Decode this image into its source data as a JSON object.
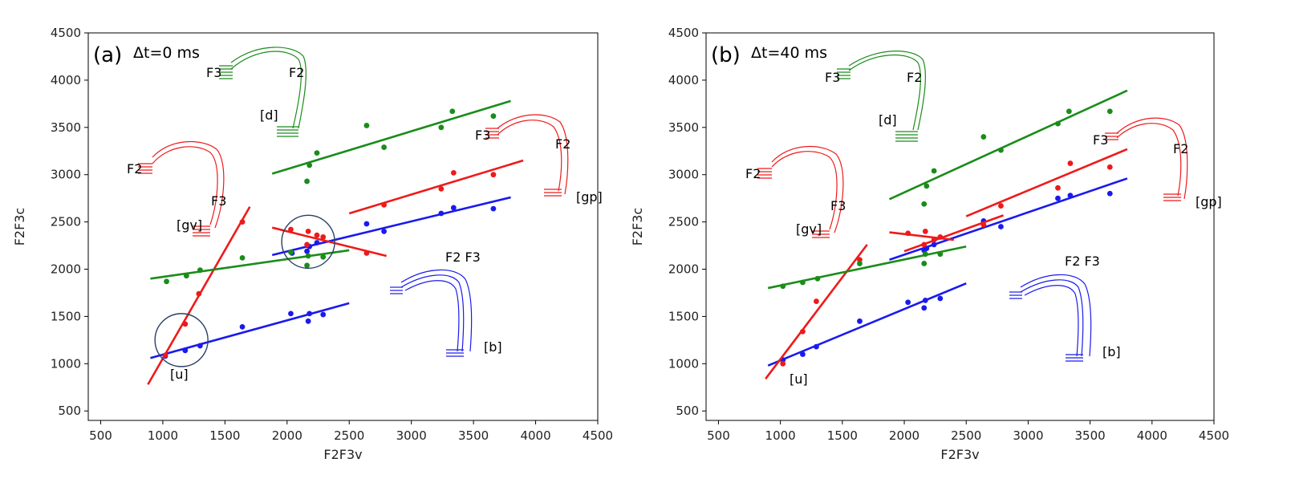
{
  "chart_data": [
    {
      "type": "scatter",
      "panel_label": "(a)",
      "title": "Δt=0 ms",
      "xlabel": "F2F3v",
      "ylabel": "F2F3c",
      "xlim": [
        400,
        4500
      ],
      "ylim": [
        400,
        4500
      ],
      "xticks": [
        500,
        1000,
        1500,
        2000,
        2500,
        3000,
        3500,
        4000,
        4500
      ],
      "yticks": [
        500,
        1000,
        1500,
        2000,
        2500,
        3000,
        3500,
        4000,
        4500
      ],
      "grid": false,
      "series": [
        {
          "color": "#1a1aee",
          "points": [
            [
              1020,
              1080
            ],
            [
              1180,
              1140
            ],
            [
              1300,
              1190
            ],
            [
              1640,
              1390
            ],
            [
              2030,
              1530
            ],
            [
              2170,
              1450
            ],
            [
              2180,
              1530
            ],
            [
              2290,
              1520
            ],
            [
              2040,
              2170
            ],
            [
              2160,
              2190
            ],
            [
              2180,
              2240
            ],
            [
              2240,
              2280
            ],
            [
              2640,
              2480
            ],
            [
              2780,
              2400
            ],
            [
              3240,
              2590
            ],
            [
              3340,
              2650
            ],
            [
              3660,
              2640
            ]
          ],
          "fits": [
            [
              [
                900,
                1060
              ],
              [
                2500,
                1640
              ]
            ],
            [
              [
                1880,
                2150
              ],
              [
                3800,
                2760
              ]
            ]
          ]
        },
        {
          "color": "#ee1a1a",
          "points": [
            [
              1020,
              1090
            ],
            [
              1180,
              1420
            ],
            [
              1290,
              1740
            ],
            [
              1640,
              2500
            ],
            [
              2030,
              2420
            ],
            [
              2160,
              2260
            ],
            [
              2170,
              2400
            ],
            [
              2240,
              2360
            ],
            [
              2290,
              2340
            ],
            [
              2640,
              2170
            ],
            [
              2780,
              2680
            ],
            [
              3240,
              2850
            ],
            [
              3340,
              3020
            ],
            [
              3660,
              3000
            ]
          ],
          "fits": [
            [
              [
                880,
                780
              ],
              [
                1700,
                2660
              ]
            ],
            [
              [
                1880,
                2440
              ],
              [
                2800,
                2140
              ]
            ],
            [
              [
                2500,
                2590
              ],
              [
                3900,
                3150
              ]
            ]
          ]
        },
        {
          "color": "#1a8c1a",
          "points": [
            [
              1030,
              1870
            ],
            [
              1190,
              1930
            ],
            [
              1300,
              1990
            ],
            [
              1640,
              2120
            ],
            [
              2030,
              2180
            ],
            [
              2160,
              2040
            ],
            [
              2170,
              2140
            ],
            [
              2290,
              2130
            ],
            [
              2160,
              2930
            ],
            [
              2180,
              3100
            ],
            [
              2240,
              3230
            ],
            [
              2640,
              3520
            ],
            [
              2780,
              3290
            ],
            [
              3240,
              3500
            ],
            [
              3330,
              3670
            ],
            [
              3660,
              3620
            ]
          ],
          "fits": [
            [
              [
                900,
                1900
              ],
              [
                2500,
                2200
              ]
            ],
            [
              [
                1880,
                3010
              ],
              [
                3800,
                3780
              ]
            ]
          ]
        }
      ],
      "circles": [
        [
          1150,
          1250
        ],
        [
          2170,
          2290
        ]
      ],
      "annotations": [
        "F3",
        "F2",
        "[d]",
        "F2",
        "F3",
        "[gv]",
        "F3",
        "F2",
        "[gp]",
        "F2 F3",
        "[b]",
        "[u]"
      ]
    },
    {
      "type": "scatter",
      "panel_label": "(b)",
      "title": "Δt=40 ms",
      "xlabel": "F2F3v",
      "ylabel": "F2F3c",
      "xlim": [
        400,
        4500
      ],
      "ylim": [
        400,
        4500
      ],
      "xticks": [
        500,
        1000,
        1500,
        2000,
        2500,
        3000,
        3500,
        4000,
        4500
      ],
      "yticks": [
        500,
        1000,
        1500,
        2000,
        2500,
        3000,
        3500,
        4000,
        4500
      ],
      "grid": false,
      "series": [
        {
          "color": "#1a1aee",
          "points": [
            [
              1020,
              1040
            ],
            [
              1180,
              1100
            ],
            [
              1290,
              1180
            ],
            [
              1640,
              1450
            ],
            [
              2030,
              1650
            ],
            [
              2160,
              1590
            ],
            [
              2170,
              1670
            ],
            [
              2290,
              1690
            ],
            [
              2160,
              2200
            ],
            [
              2180,
              2220
            ],
            [
              2240,
              2260
            ],
            [
              2640,
              2510
            ],
            [
              2780,
              2450
            ],
            [
              3240,
              2750
            ],
            [
              3340,
              2780
            ],
            [
              3660,
              2800
            ]
          ],
          "fits": [
            [
              [
                900,
                980
              ],
              [
                2500,
                1850
              ]
            ],
            [
              [
                1880,
                2100
              ],
              [
                3800,
                2960
              ]
            ]
          ]
        },
        {
          "color": "#ee1a1a",
          "points": [
            [
              1020,
              1000
            ],
            [
              1180,
              1340
            ],
            [
              1290,
              1660
            ],
            [
              1640,
              2100
            ],
            [
              2030,
              2380
            ],
            [
              2160,
              2260
            ],
            [
              2170,
              2400
            ],
            [
              2240,
              2310
            ],
            [
              2290,
              2340
            ],
            [
              2640,
              2470
            ],
            [
              2780,
              2670
            ],
            [
              3240,
              2860
            ],
            [
              3340,
              3120
            ],
            [
              3660,
              3080
            ]
          ],
          "fits": [
            [
              [
                880,
                840
              ],
              [
                1700,
                2260
              ]
            ],
            [
              [
                1880,
                2390
              ],
              [
                2400,
                2310
              ]
            ],
            [
              [
                2000,
                2190
              ],
              [
                2800,
                2570
              ]
            ],
            [
              [
                2500,
                2560
              ],
              [
                3800,
                3270
              ]
            ]
          ]
        },
        {
          "color": "#1a8c1a",
          "points": [
            [
              1020,
              1820
            ],
            [
              1180,
              1860
            ],
            [
              1300,
              1900
            ],
            [
              1640,
              2060
            ],
            [
              2160,
              2060
            ],
            [
              2170,
              2160
            ],
            [
              2290,
              2160
            ],
            [
              2160,
              2690
            ],
            [
              2180,
              2880
            ],
            [
              2240,
              3040
            ],
            [
              2640,
              3400
            ],
            [
              2780,
              3260
            ],
            [
              3240,
              3540
            ],
            [
              3330,
              3670
            ],
            [
              3660,
              3670
            ]
          ],
          "fits": [
            [
              [
                900,
                1800
              ],
              [
                2500,
                2240
              ]
            ],
            [
              [
                1880,
                2740
              ],
              [
                3800,
                3890
              ]
            ]
          ]
        }
      ],
      "annotations": [
        "F3",
        "F2",
        "[d]",
        "F2",
        "F3",
        "[gv]",
        "F3",
        "F2",
        "[gp]",
        "F2 F3",
        "[b]",
        "[u]"
      ]
    }
  ]
}
